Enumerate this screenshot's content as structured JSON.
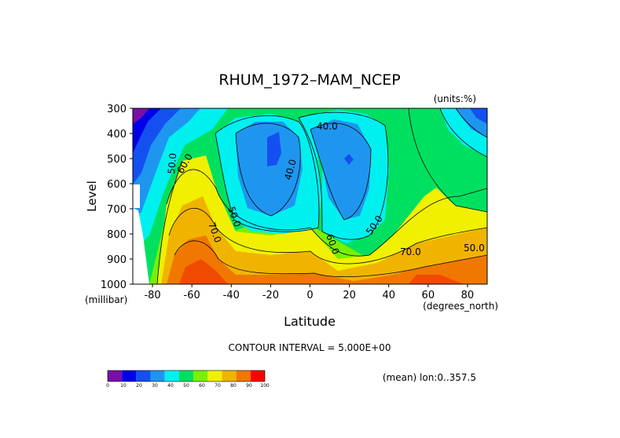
{
  "chart_data": {
    "type": "contour",
    "title": "RHUM_1972–MAM_NCEP",
    "units_note": "(units:%)",
    "xlabel": "Latitude",
    "ylabel": "Level",
    "x_unit": "(degrees_north)",
    "y_unit": "(millibar)",
    "x_ticks": [
      "-80",
      "-60",
      "-40",
      "-20",
      "0",
      "20",
      "40",
      "60",
      "80"
    ],
    "y_ticks": [
      "300",
      "400",
      "500",
      "600",
      "700",
      "800",
      "900",
      "1000"
    ],
    "xlim": [
      -90,
      90
    ],
    "ylim": [
      1000,
      300
    ],
    "contour_interval_text": "CONTOUR INTERVAL = 5.000E+00",
    "mean_note": "(mean) lon:0..357.5",
    "contour_labels": [
      "40.0",
      "40.0",
      "50.0",
      "50.0",
      "60.0",
      "60.0",
      "50.0",
      "70.0",
      "70.0",
      "50.0"
    ],
    "colorbar": {
      "ticks": [
        "0",
        "10",
        "20",
        "30",
        "40",
        "50",
        "60",
        "70",
        "80",
        "90",
        "100"
      ],
      "colors": [
        "#7a0fa8",
        "#0000e8",
        "#1450f0",
        "#1e96f0",
        "#00f0f0",
        "#00e060",
        "#78f000",
        "#f0f000",
        "#f0b400",
        "#f07800",
        "#ff0000"
      ]
    },
    "grid": false
  }
}
